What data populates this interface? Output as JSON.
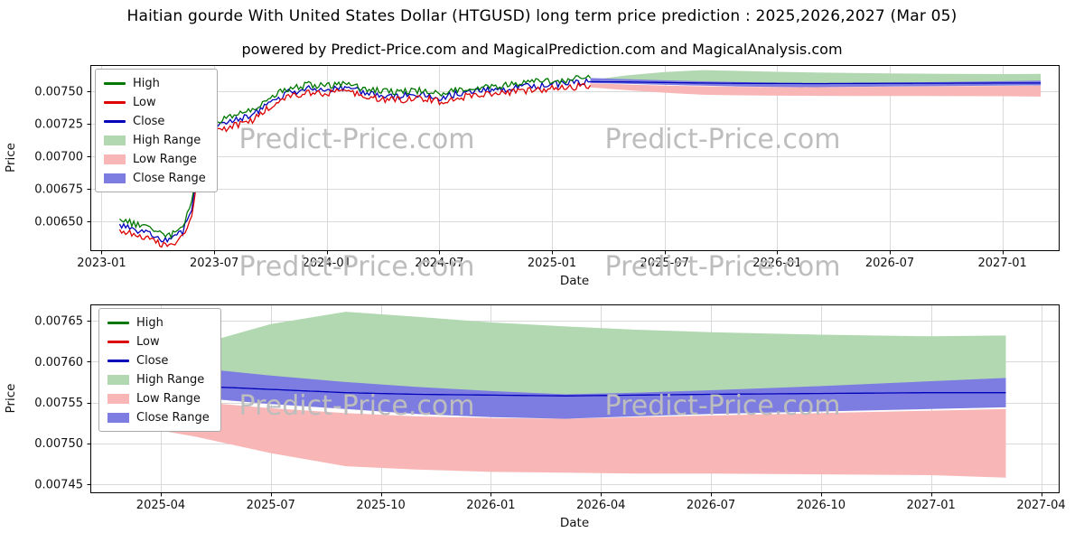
{
  "title": "Haitian gourde With United States Dollar (HTGUSD) long term price prediction : 2025,2026,2027 (Mar 05)",
  "subtitle": "powered by Predict-Price.com and MagicalPrediction.com and MagicalAnalysis.com",
  "watermark": "Predict-Price.com",
  "legend": {
    "items": [
      "High",
      "Low",
      "Close",
      "High Range",
      "Low Range",
      "Close Range"
    ]
  },
  "colors": {
    "high": "#007700",
    "low": "#dd0000",
    "close": "#0000bb",
    "high_range": "#b2d8b2",
    "low_range": "#f9b6b6",
    "close_range": "#7d7de1",
    "grid": "#d9d9d9",
    "axis": "#000000",
    "watermark_gray": "#bdbdbd"
  },
  "chart_data": [
    {
      "type": "line",
      "title": "",
      "xlabel": "Date",
      "ylabel": "Price",
      "xlim": [
        2022.95,
        2027.25
      ],
      "ylim": [
        0.00628,
        0.0077
      ],
      "grid": true,
      "legend_position": "upper left",
      "noise_amp": 2.6e-05,
      "xticks": {
        "values": [
          2023.0,
          2023.5,
          2024.0,
          2024.5,
          2025.0,
          2025.5,
          2026.0,
          2026.5,
          2027.0
        ],
        "labels": [
          "2023-01",
          "2023-07",
          "2024-01",
          "2024-07",
          "2025-01",
          "2025-07",
          "2026-01",
          "2026-07",
          "2027-01"
        ]
      },
      "yticks": {
        "values": [
          0.0065,
          0.00675,
          0.007,
          0.00725,
          0.0075
        ],
        "labels": [
          "0.00650",
          "0.00675",
          "0.00700",
          "0.00725",
          "0.00750"
        ]
      },
      "series": [
        {
          "name": "High Range",
          "kind": "band",
          "color": "#b2d8b2",
          "x": [
            2025.17,
            2025.33,
            2025.5,
            2025.67,
            2025.83,
            2026.0,
            2026.17,
            2026.33,
            2026.5,
            2026.75,
            2027.0,
            2027.17
          ],
          "upper": [
            0.007585,
            0.00762,
            0.007646,
            0.007661,
            0.007655,
            0.007648,
            0.007643,
            0.007639,
            0.007636,
            0.007633,
            0.007631,
            0.007632
          ],
          "lower": [
            0.007574,
            0.00757,
            0.007566,
            0.007561,
            0.007558,
            0.007556,
            0.007555,
            0.007556,
            0.007558,
            0.00756,
            0.007562,
            0.007564
          ]
        },
        {
          "name": "Low Range",
          "kind": "band",
          "color": "#f9b6b6",
          "x": [
            2025.17,
            2025.33,
            2025.5,
            2025.67,
            2025.83,
            2026.0,
            2026.17,
            2026.33,
            2026.5,
            2026.75,
            2027.0,
            2027.17
          ],
          "upper": [
            0.00756,
            0.007551,
            0.007543,
            0.007537,
            0.007533,
            0.007531,
            0.00753,
            0.007532,
            0.007534,
            0.007537,
            0.00754,
            0.007542
          ],
          "lower": [
            0.007528,
            0.007508,
            0.007488,
            0.007472,
            0.007468,
            0.007465,
            0.007464,
            0.007463,
            0.007463,
            0.007462,
            0.007461,
            0.007458
          ]
        },
        {
          "name": "Close Range",
          "kind": "band",
          "color": "#7d7de1",
          "x": [
            2025.17,
            2025.33,
            2025.5,
            2025.67,
            2025.83,
            2026.0,
            2026.17,
            2026.33,
            2026.5,
            2026.75,
            2027.0,
            2027.17
          ],
          "upper": [
            0.0076,
            0.007592,
            0.007583,
            0.007575,
            0.007569,
            0.007564,
            0.00756,
            0.007562,
            0.007565,
            0.00757,
            0.007576,
            0.00758
          ],
          "lower": [
            0.007562,
            0.007556,
            0.007548,
            0.007542,
            0.007536,
            0.007532,
            0.00753,
            0.007533,
            0.007536,
            0.007539,
            0.007542,
            0.007544
          ]
        },
        {
          "name": "Close",
          "kind": "line",
          "color": "#0000bb",
          "noisy": true,
          "noise_until": 2025.16,
          "x": [
            2023.08,
            2023.17,
            2023.25,
            2023.3,
            2023.36,
            2023.4,
            2023.44,
            2023.5,
            2023.58,
            2023.67,
            2023.75,
            2023.83,
            2023.92,
            2024.0,
            2024.08,
            2024.17,
            2024.25,
            2024.33,
            2024.42,
            2024.5,
            2024.58,
            2024.67,
            2024.75,
            2024.83,
            2024.92,
            2025.0,
            2025.08,
            2025.17,
            2025.33,
            2025.5,
            2025.67,
            2025.83,
            2026.0,
            2026.17,
            2026.33,
            2026.5,
            2026.75,
            2027.0,
            2027.17
          ],
          "y": [
            0.00648,
            0.00643,
            0.00638,
            0.00635,
            0.00642,
            0.0066,
            0.007,
            0.00722,
            0.00727,
            0.00732,
            0.00742,
            0.00749,
            0.00752,
            0.00751,
            0.00753,
            0.00749,
            0.00747,
            0.00746,
            0.00748,
            0.00745,
            0.00748,
            0.0075,
            0.00751,
            0.00752,
            0.00754,
            0.00755,
            0.00756,
            0.007572,
            0.00757,
            0.007566,
            0.007562,
            0.00756,
            0.007559,
            0.007558,
            0.007559,
            0.00756,
            0.007561,
            0.007562,
            0.007562
          ]
        },
        {
          "name": "High",
          "kind": "line",
          "color": "#007700",
          "noisy": true,
          "x": [
            2023.08,
            2023.17,
            2023.25,
            2023.3,
            2023.36,
            2023.4,
            2023.44,
            2023.5,
            2023.58,
            2023.67,
            2023.75,
            2023.83,
            2023.92,
            2024.0,
            2024.08,
            2024.17,
            2024.25,
            2024.33,
            2024.42,
            2024.5,
            2024.58,
            2024.67,
            2024.75,
            2024.83,
            2024.92,
            2025.0,
            2025.08,
            2025.17
          ],
          "y": [
            0.00652,
            0.00647,
            0.00642,
            0.00639,
            0.00646,
            0.00664,
            0.00704,
            0.00726,
            0.00731,
            0.00736,
            0.00746,
            0.00752,
            0.00755,
            0.00754,
            0.00756,
            0.00752,
            0.0075,
            0.00749,
            0.00751,
            0.00748,
            0.00751,
            0.00753,
            0.00754,
            0.00755,
            0.00757,
            0.00758,
            0.00759,
            0.0076
          ]
        },
        {
          "name": "Low",
          "kind": "line",
          "color": "#dd0000",
          "noisy": true,
          "x": [
            2023.08,
            2023.17,
            2023.25,
            2023.3,
            2023.36,
            2023.4,
            2023.44,
            2023.5,
            2023.58,
            2023.67,
            2023.75,
            2023.83,
            2023.92,
            2024.0,
            2024.08,
            2024.17,
            2024.25,
            2024.33,
            2024.42,
            2024.5,
            2024.58,
            2024.67,
            2024.75,
            2024.83,
            2024.92,
            2025.0,
            2025.08,
            2025.17
          ],
          "y": [
            0.00644,
            0.00639,
            0.00634,
            0.00631,
            0.00638,
            0.00656,
            0.00696,
            0.00718,
            0.00723,
            0.00728,
            0.00738,
            0.00746,
            0.00749,
            0.00748,
            0.0075,
            0.00746,
            0.00744,
            0.00743,
            0.00745,
            0.00742,
            0.00745,
            0.00747,
            0.00748,
            0.00749,
            0.00751,
            0.00752,
            0.00753,
            0.007545
          ]
        }
      ]
    },
    {
      "type": "line",
      "title": "",
      "xlabel": "Date",
      "ylabel": "Price",
      "xlim": [
        2025.09,
        2027.29
      ],
      "ylim": [
        0.00744,
        0.00767
      ],
      "grid": true,
      "legend_position": "upper left",
      "noise_amp": 0,
      "xticks": {
        "values": [
          2025.25,
          2025.5,
          2025.75,
          2026.0,
          2026.25,
          2026.5,
          2026.75,
          2027.0,
          2027.25
        ],
        "labels": [
          "2025-04",
          "2025-07",
          "2025-10",
          "2026-01",
          "2026-04",
          "2026-07",
          "2026-10",
          "2027-01",
          "2027-04"
        ]
      },
      "yticks": {
        "values": [
          0.00745,
          0.0075,
          0.00755,
          0.0076,
          0.00765
        ],
        "labels": [
          "0.00745",
          "0.00750",
          "0.00755",
          "0.00760",
          "0.00765"
        ]
      },
      "series": [
        {
          "name": "High Range",
          "kind": "band",
          "color": "#b2d8b2",
          "x": [
            2025.12,
            2025.33,
            2025.5,
            2025.67,
            2025.83,
            2026.0,
            2026.17,
            2026.33,
            2026.5,
            2026.75,
            2027.0,
            2027.17
          ],
          "upper": [
            0.007585,
            0.00762,
            0.007646,
            0.007661,
            0.007655,
            0.007648,
            0.007643,
            0.007639,
            0.007636,
            0.007633,
            0.007631,
            0.007632
          ],
          "lower": [
            0.007574,
            0.00757,
            0.007566,
            0.007561,
            0.007558,
            0.007556,
            0.007555,
            0.007556,
            0.007558,
            0.00756,
            0.007562,
            0.007564
          ]
        },
        {
          "name": "Low Range",
          "kind": "band",
          "color": "#f9b6b6",
          "x": [
            2025.12,
            2025.33,
            2025.5,
            2025.67,
            2025.83,
            2026.0,
            2026.17,
            2026.33,
            2026.5,
            2026.75,
            2027.0,
            2027.17
          ],
          "upper": [
            0.00756,
            0.007551,
            0.007543,
            0.007537,
            0.007533,
            0.007531,
            0.00753,
            0.007532,
            0.007534,
            0.007537,
            0.00754,
            0.007542
          ],
          "lower": [
            0.007528,
            0.007508,
            0.007488,
            0.007472,
            0.007468,
            0.007465,
            0.007464,
            0.007463,
            0.007463,
            0.007462,
            0.007461,
            0.007458
          ]
        },
        {
          "name": "Close Range",
          "kind": "band",
          "color": "#7d7de1",
          "x": [
            2025.12,
            2025.33,
            2025.5,
            2025.67,
            2025.83,
            2026.0,
            2026.17,
            2026.33,
            2026.5,
            2026.75,
            2027.0,
            2027.17
          ],
          "upper": [
            0.0076,
            0.007592,
            0.007583,
            0.007575,
            0.007569,
            0.007564,
            0.00756,
            0.007562,
            0.007565,
            0.00757,
            0.007576,
            0.00758
          ],
          "lower": [
            0.007562,
            0.007556,
            0.007548,
            0.007542,
            0.007536,
            0.007532,
            0.00753,
            0.007533,
            0.007536,
            0.007539,
            0.007542,
            0.007544
          ]
        },
        {
          "name": "Close",
          "kind": "line",
          "color": "#0000bb",
          "x": [
            2025.12,
            2025.33,
            2025.5,
            2025.67,
            2025.83,
            2026.0,
            2026.17,
            2026.33,
            2026.5,
            2026.75,
            2027.0,
            2027.17
          ],
          "y": [
            0.007573,
            0.00757,
            0.007566,
            0.007562,
            0.00756,
            0.007559,
            0.007558,
            0.007559,
            0.00756,
            0.007561,
            0.007562,
            0.007562
          ]
        }
      ]
    }
  ]
}
